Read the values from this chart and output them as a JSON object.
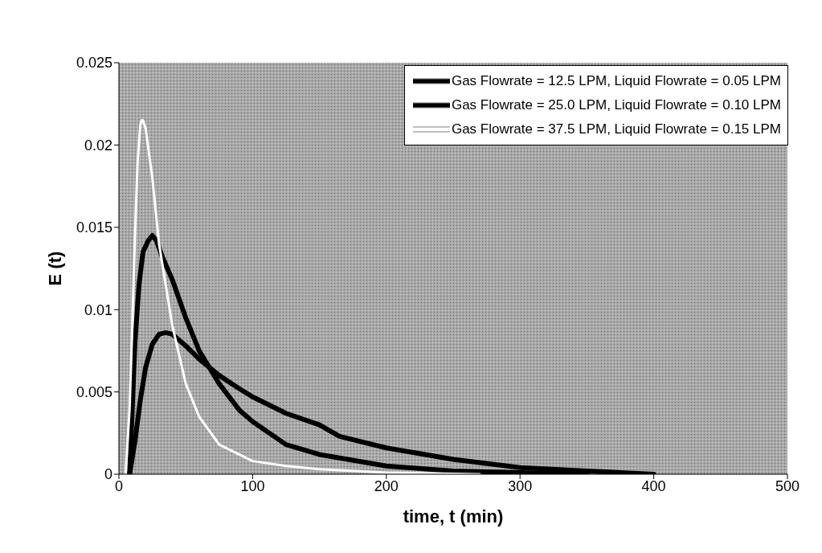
{
  "chart_data": {
    "type": "line",
    "xlabel": "time, t (min)",
    "ylabel": "E (t)",
    "xlim": [
      0,
      500
    ],
    "xticks": [
      0,
      100,
      200,
      300,
      400,
      500
    ],
    "ylim": [
      0,
      0.025
    ],
    "yticks": [
      0,
      0.005,
      0.01,
      0.015,
      0.02,
      0.025
    ],
    "grid": false,
    "legend": "top right",
    "marker": "none",
    "line_style": "solid",
    "series": [
      {
        "name": "Gas Flowrate = 12.5 LPM, Liquid Flowrate = 0.05 LPM",
        "color": "#000000",
        "x": [
          8,
          12,
          16,
          20,
          25,
          30,
          35,
          40,
          50,
          60,
          75,
          90,
          100,
          125,
          150,
          165,
          200,
          250,
          300,
          350,
          400
        ],
        "values": [
          0,
          0.002,
          0.0045,
          0.0065,
          0.0079,
          0.0085,
          0.0086,
          0.0085,
          0.0078,
          0.007,
          0.006,
          0.0052,
          0.0047,
          0.0037,
          0.003,
          0.0023,
          0.0016,
          0.0009,
          0.0004,
          0.0002,
          0
        ]
      },
      {
        "name": "Gas Flowrate = 25.0 LPM, Liquid Flowrate = 0.10 LPM",
        "color": "#000000",
        "x": [
          8,
          10,
          12,
          15,
          18,
          22,
          25,
          28,
          32,
          40,
          50,
          60,
          75,
          90,
          100,
          125,
          150,
          200,
          250,
          300,
          350
        ],
        "values": [
          0,
          0.004,
          0.008,
          0.0115,
          0.0135,
          0.0142,
          0.0145,
          0.0142,
          0.0133,
          0.0118,
          0.0095,
          0.0075,
          0.0055,
          0.0039,
          0.0032,
          0.0018,
          0.0012,
          0.0005,
          0.0002,
          0.0001,
          0
        ]
      },
      {
        "name": "Gas Flowrate = 37.5 LPM, Liquid Flowrate = 0.15 LPM",
        "color": "#ffffff",
        "x": [
          5,
          8,
          10,
          12,
          14,
          16,
          17,
          18,
          20,
          25,
          30,
          35,
          40,
          50,
          60,
          75,
          100,
          125,
          150,
          200,
          270
        ],
        "values": [
          0,
          0.004,
          0.009,
          0.0145,
          0.019,
          0.0212,
          0.0215,
          0.0215,
          0.021,
          0.018,
          0.014,
          0.0115,
          0.009,
          0.0055,
          0.0035,
          0.0018,
          0.0008,
          0.0005,
          0.0003,
          0.0001,
          0
        ]
      }
    ]
  }
}
